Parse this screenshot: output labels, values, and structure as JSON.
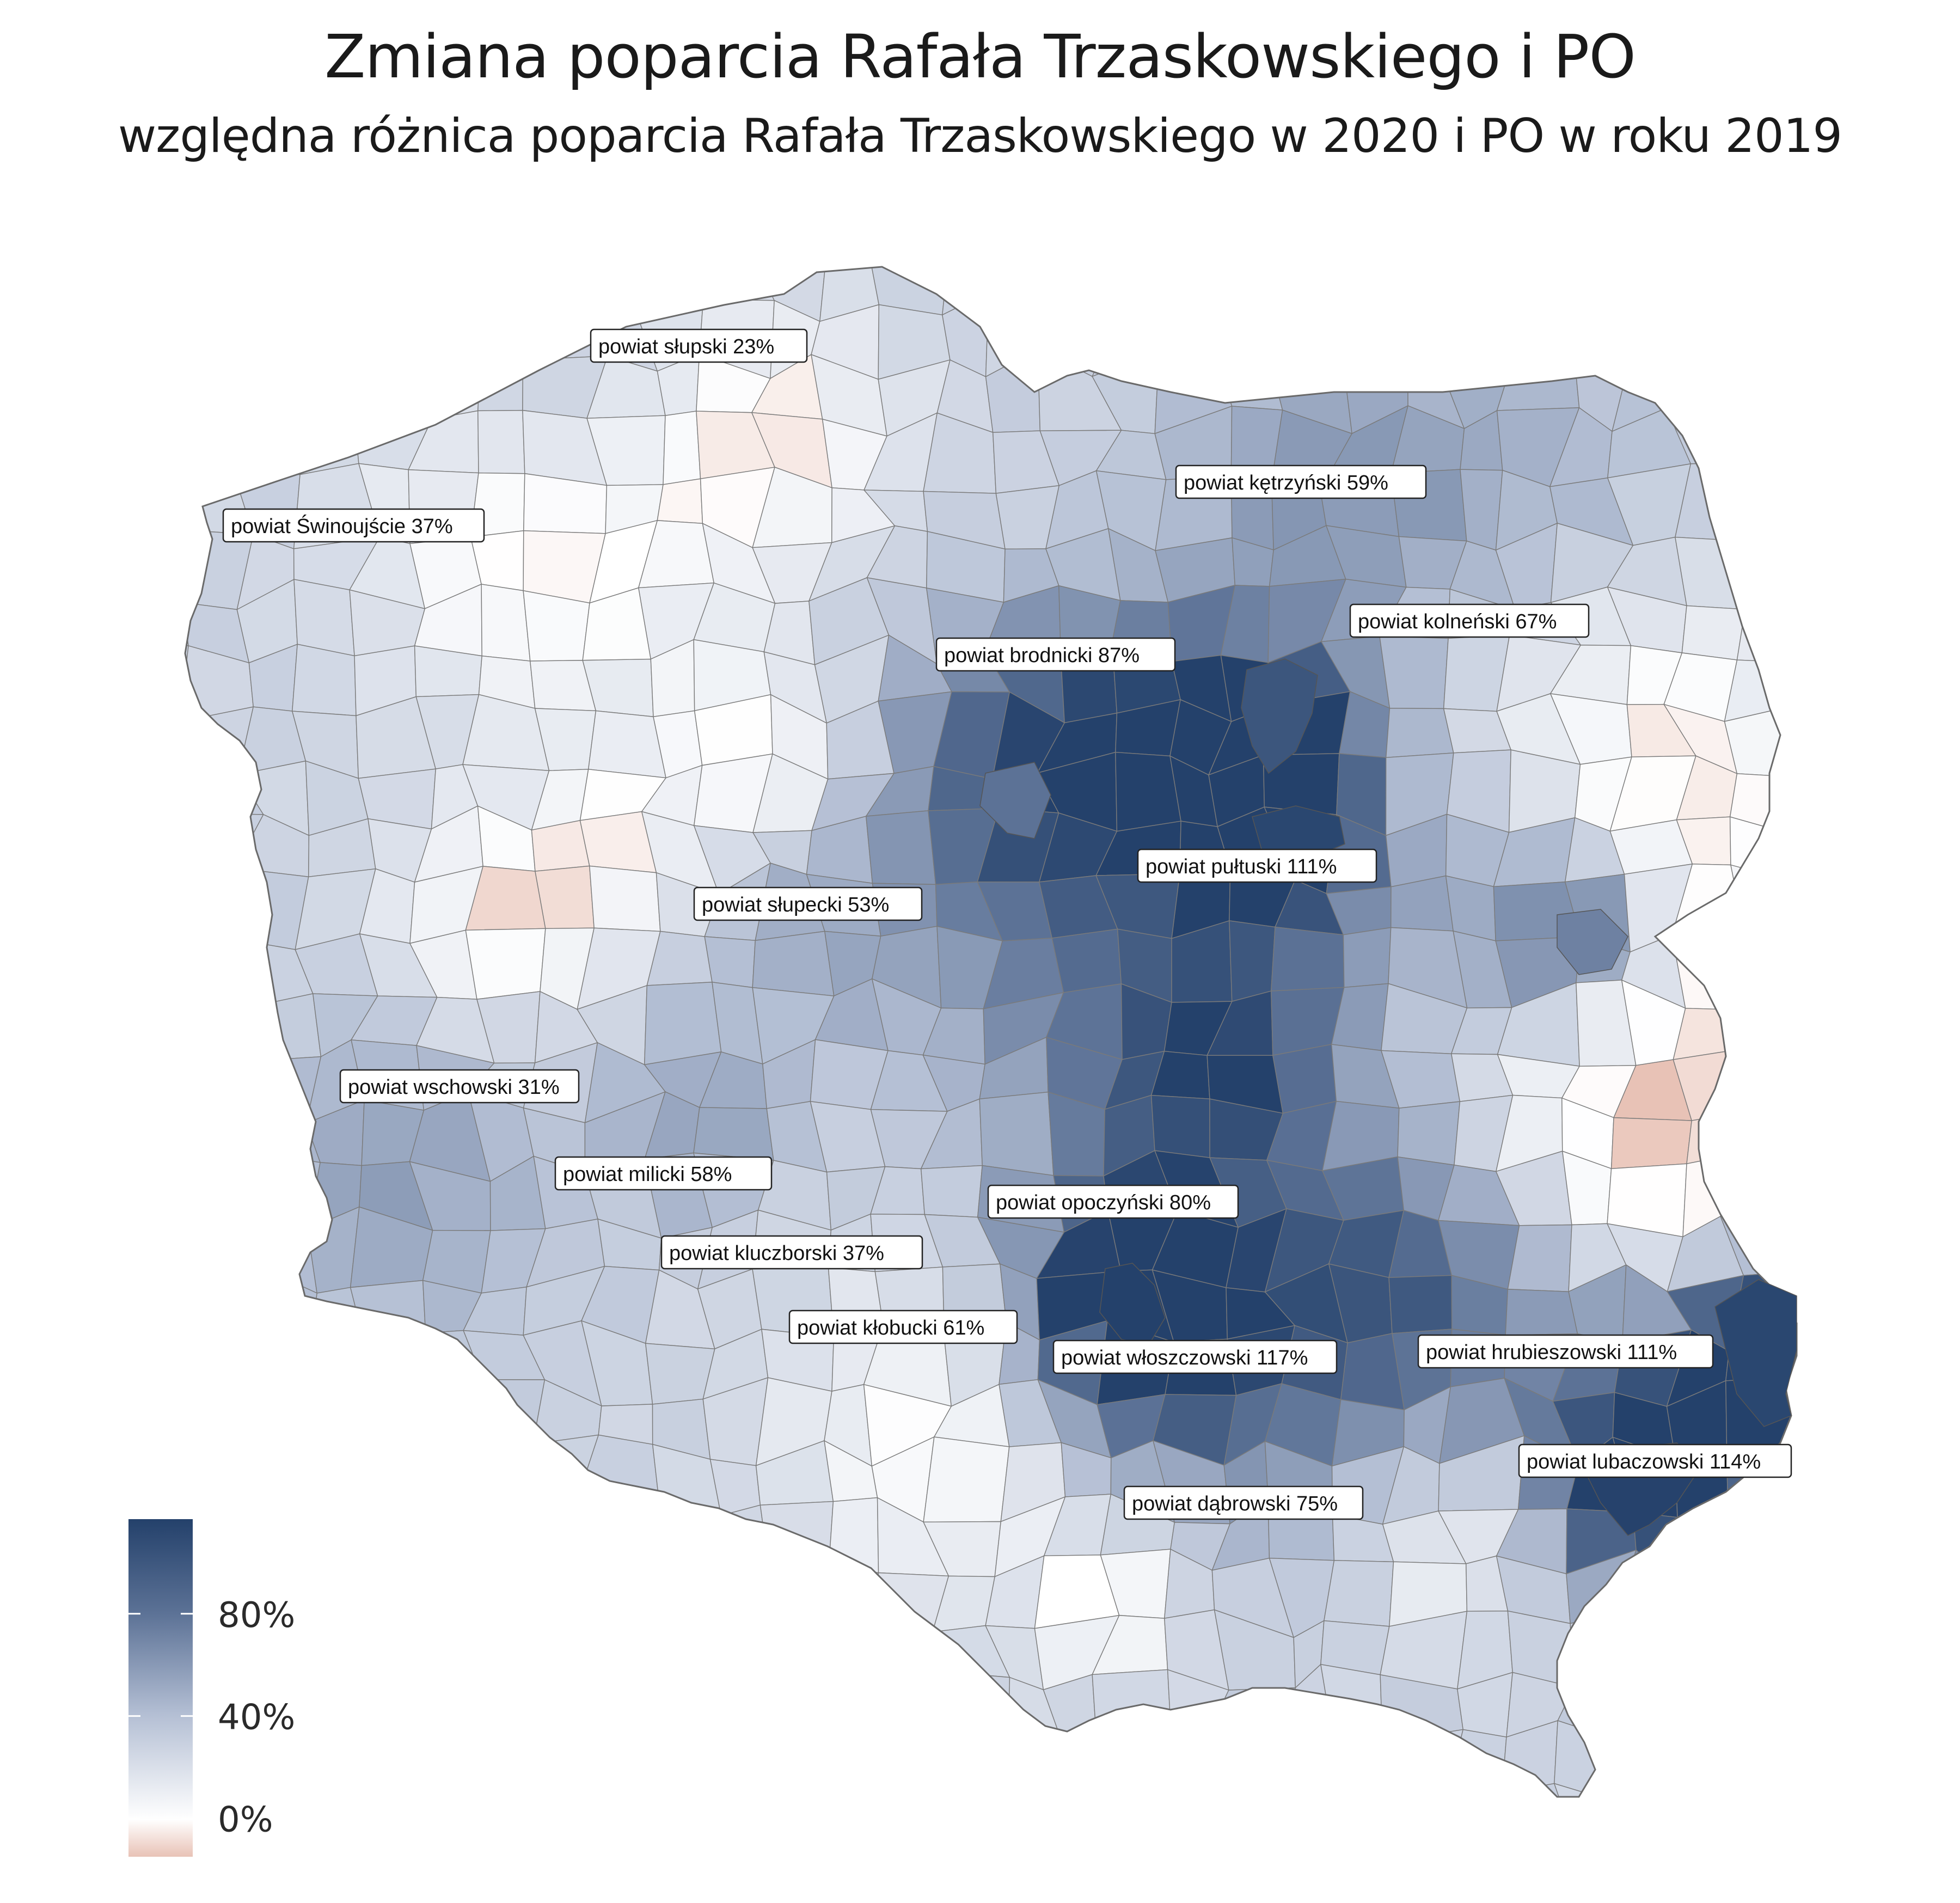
{
  "header": {
    "title": "Zmiana poparcia Rafała Trzaskowskiego i PO",
    "subtitle": "względna różnica poparcia Rafała Trzaskowskiego w 2020 i PO w roku 2019"
  },
  "colors": {
    "negative": "#e8c2b6",
    "zero": "#ffffff",
    "mid": "#b4bfd4",
    "high": "#5c7296",
    "max": "#24416b",
    "border": "#7a7a7a"
  },
  "legend": {
    "ticks": [
      {
        "label": "80%",
        "value": 0.8
      },
      {
        "label": "40%",
        "value": 0.4
      },
      {
        "label": "0%",
        "value": 0.0
      }
    ],
    "range": [
      -0.15,
      1.17
    ]
  },
  "labels": [
    {
      "text": "powiat słupski 23%",
      "value": 0.23
    },
    {
      "text": "powiat kętrzyński 59%",
      "value": 0.59
    },
    {
      "text": "powiat Świnoujście 37%",
      "value": 0.37
    },
    {
      "text": "powiat kolneński 67%",
      "value": 0.67
    },
    {
      "text": "powiat brodnicki 87%",
      "value": 0.87
    },
    {
      "text": "powiat pułtuski 111%",
      "value": 1.11
    },
    {
      "text": "powiat słupecki 53%",
      "value": 0.53
    },
    {
      "text": "powiat wschowski 31%",
      "value": 0.31
    },
    {
      "text": "powiat milicki 58%",
      "value": 0.58
    },
    {
      "text": "powiat opoczyński 80%",
      "value": 0.8
    },
    {
      "text": "powiat kluczborski 37%",
      "value": 0.37
    },
    {
      "text": "powiat kłobucki 61%",
      "value": 0.61
    },
    {
      "text": "powiat włoszczowski 117%",
      "value": 1.17
    },
    {
      "text": "powiat hrubieszowski 111%",
      "value": 1.11
    },
    {
      "text": "powiat lubaczowski 114%",
      "value": 1.14
    },
    {
      "text": "powiat dąbrowski 75%",
      "value": 0.75
    }
  ]
}
